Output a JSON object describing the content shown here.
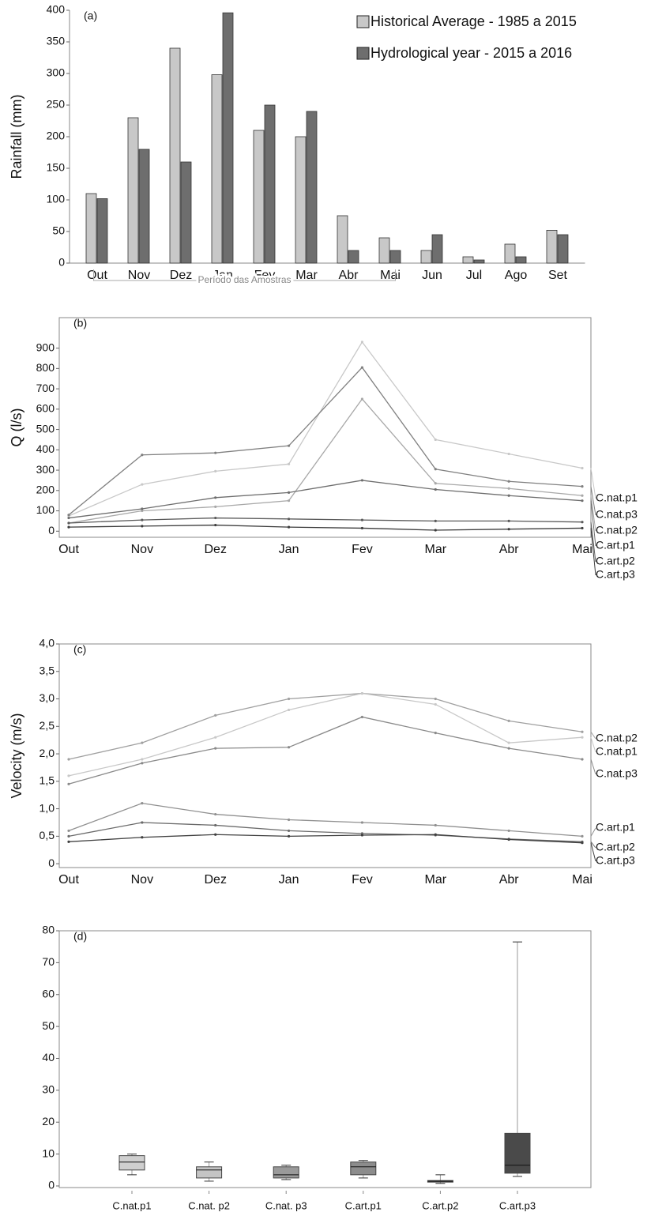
{
  "chart_data": [
    {
      "type": "bar",
      "label": "(a)",
      "y_label": "Rainfall (mm)",
      "categories": [
        "Out",
        "Nov",
        "Dez",
        "Jan",
        "Fev",
        "Mar",
        "Abr",
        "Mai",
        "Jun",
        "Jul",
        "Ago",
        "Set"
      ],
      "series": [
        {
          "name": "Historical Average  - 1985 a 2015",
          "color": "#c8c8c8",
          "values": [
            110,
            230,
            340,
            298,
            210,
            200,
            75,
            40,
            20,
            10,
            30,
            52
          ]
        },
        {
          "name": "Hydrological year  - 2015 a 2016",
          "color": "#6e6e6e",
          "values": [
            102,
            180,
            160,
            396,
            250,
            240,
            20,
            20,
            45,
            5,
            10,
            45
          ]
        }
      ],
      "annotation": "Período das Amostras",
      "ylim": [
        0,
        400
      ],
      "yticks": [
        0,
        50,
        100,
        150,
        200,
        250,
        300,
        350,
        400
      ]
    },
    {
      "type": "line",
      "label": "(b)",
      "y_label": "Q (l/s)",
      "categories": [
        "Out",
        "Nov",
        "Dez",
        "Jan",
        "Fev",
        "Mar",
        "Abr",
        "Mai"
      ],
      "series": [
        {
          "name": "C.nat.p1",
          "color": "#c8c8c8",
          "values": [
            75,
            230,
            295,
            330,
            930,
            450,
            380,
            310
          ]
        },
        {
          "name": "C.nat.p3",
          "color": "#808080",
          "values": [
            80,
            375,
            385,
            420,
            805,
            305,
            245,
            220
          ]
        },
        {
          "name": "C.nat.p2",
          "color": "#a8a8a8",
          "values": [
            40,
            100,
            120,
            150,
            650,
            235,
            210,
            175
          ]
        },
        {
          "name": "C.art.p1",
          "color": "#6e6e6e",
          "values": [
            65,
            110,
            165,
            190,
            250,
            205,
            175,
            150
          ]
        },
        {
          "name": "C.art.p2",
          "color": "#5a5a5a",
          "values": [
            40,
            55,
            65,
            60,
            55,
            50,
            50,
            45
          ]
        },
        {
          "name": "C.art.p3",
          "color": "#3c3c3c",
          "values": [
            20,
            25,
            30,
            20,
            15,
            5,
            10,
            15
          ]
        }
      ],
      "ylim": [
        -30,
        1050
      ],
      "yticks": [
        0,
        100,
        200,
        300,
        400,
        500,
        600,
        700,
        800,
        900
      ]
    },
    {
      "type": "line",
      "label": "(c)",
      "y_label": "Velocity (m/s)",
      "categories": [
        "Out",
        "Nov",
        "Dez",
        "Jan",
        "Fev",
        "Mar",
        "Abr",
        "Mai"
      ],
      "series": [
        {
          "name": "C.nat.p2",
          "color": "#a0a0a0",
          "values": [
            1.9,
            2.2,
            2.7,
            3.0,
            3.1,
            3.0,
            2.6,
            2.4
          ]
        },
        {
          "name": "C.nat.p1",
          "color": "#c8c8c8",
          "values": [
            1.6,
            1.9,
            2.3,
            2.8,
            3.1,
            2.9,
            2.2,
            2.3
          ]
        },
        {
          "name": "C.nat.p3",
          "color": "#8a8a8a",
          "values": [
            1.45,
            1.83,
            2.1,
            2.12,
            2.67,
            2.38,
            2.1,
            1.9
          ]
        },
        {
          "name": "C.art.p1",
          "color": "#909090",
          "values": [
            0.6,
            1.1,
            0.9,
            0.8,
            0.75,
            0.7,
            0.6,
            0.5
          ]
        },
        {
          "name": "C.art.p2",
          "color": "#6a6a6a",
          "values": [
            0.5,
            0.75,
            0.7,
            0.6,
            0.55,
            0.52,
            0.45,
            0.4
          ]
        },
        {
          "name": "C.art.p3",
          "color": "#404040",
          "values": [
            0.4,
            0.48,
            0.53,
            0.5,
            0.52,
            0.53,
            0.44,
            0.38
          ]
        }
      ],
      "ylim": [
        -0.07,
        4.0
      ],
      "yticks": [
        0,
        {
          "value": 0.5,
          "label": "0,5"
        },
        {
          "value": 1.0,
          "label": "1,0"
        },
        {
          "value": 1.5,
          "label": "1,5"
        },
        {
          "value": 2.0,
          "label": "2,0"
        },
        {
          "value": 2.5,
          "label": "2,5"
        },
        {
          "value": 3.0,
          "label": "3,0"
        },
        {
          "value": 3.5,
          "label": "3,5"
        },
        {
          "value": 4.0,
          "label": "4,0"
        }
      ]
    },
    {
      "type": "box",
      "label": "(d)",
      "categories": [
        "C.nat.p1",
        "C.nat. p2",
        "C.nat. p3",
        "C.art.p1",
        "C.art.p2",
        "C.art.p3"
      ],
      "colors": [
        "#cfcfcf",
        "#c4c4c4",
        "#9a9a9a",
        "#8c8c8c",
        "#444444",
        "#4a4a4a"
      ],
      "min": [
        3.5,
        1.5,
        2,
        2.5,
        0.8,
        3
      ],
      "q1": [
        5,
        2.5,
        2.5,
        3.5,
        1.2,
        4
      ],
      "median": [
        7.5,
        5,
        3.5,
        6,
        1.5,
        6.5
      ],
      "q3": [
        9.5,
        6,
        6,
        7.5,
        1.7,
        16.5
      ],
      "max": [
        10,
        7.5,
        6.5,
        8,
        3.5,
        76.5
      ],
      "ylim": [
        -0.5,
        80
      ],
      "yticks": [
        0,
        10,
        20,
        30,
        40,
        50,
        60,
        70,
        80
      ]
    }
  ]
}
